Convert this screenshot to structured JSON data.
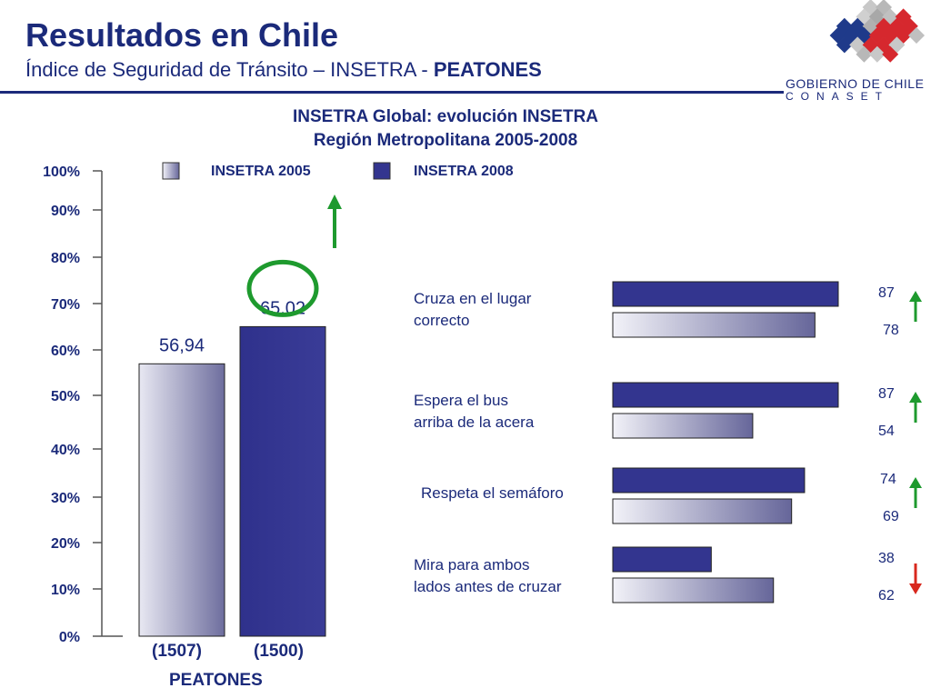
{
  "header": {
    "title": "Resultados en Chile",
    "subtitle_prefix": "Índice de Seguridad de Tránsito – INSETRA - ",
    "subtitle_bold": "PEATONES"
  },
  "logo": {
    "line1": "GOBIERNO DE CHILE",
    "line2": "CONASET"
  },
  "colors": {
    "brand": "#1b2a7a",
    "series_2008": "#33358f",
    "series_2005_light": "#e8e8f2",
    "series_2005_dark": "#6e6e9e",
    "arrow_up": "#1e9a2e",
    "arrow_down": "#d8281e",
    "circle": "#1e9a2e"
  },
  "chart_data": [
    {
      "type": "bar",
      "title": "INSETRA Global: evolución INSETRA",
      "subtitle": "Región Metropolitana 2005-2008",
      "xlabel": "PEATONES",
      "ylabel": "",
      "ylim": [
        0,
        100
      ],
      "yticks": [
        "0%",
        "10%",
        "20%",
        "30%",
        "40%",
        "50%",
        "60%",
        "70%",
        "80%",
        "90%",
        "100%"
      ],
      "legend": [
        "INSETRA 2005",
        "INSETRA 2008"
      ],
      "legend_position": "top",
      "categories": [
        "(1507)",
        "(1500)"
      ],
      "series": [
        {
          "name": "INSETRA 2005",
          "value": 56.94,
          "label": "56,94"
        },
        {
          "name": "INSETRA 2008",
          "value": 65.02,
          "label": "65,02",
          "trend": "up",
          "highlighted": true
        }
      ]
    },
    {
      "type": "bar",
      "orientation": "horizontal",
      "categories": [
        "Cruza en el lugar correcto",
        "Espera el bus arriba de la acera",
        "Respeta el semáforo",
        "Mira para ambos lados antes de cruzar"
      ],
      "series": [
        {
          "name": "INSETRA 2008",
          "values": [
            87,
            87,
            74,
            38
          ]
        },
        {
          "name": "INSETRA 2005",
          "values": [
            78,
            54,
            69,
            62
          ]
        }
      ],
      "trend": [
        "up",
        "up",
        "up",
        "down"
      ]
    }
  ],
  "category_lines": [
    [
      "Cruza en el lugar",
      "correcto"
    ],
    [
      "Espera el bus",
      "arriba de la acera"
    ],
    [
      "Respeta el semáforo"
    ],
    [
      "Mira para ambos",
      "lados antes de cruzar"
    ]
  ]
}
